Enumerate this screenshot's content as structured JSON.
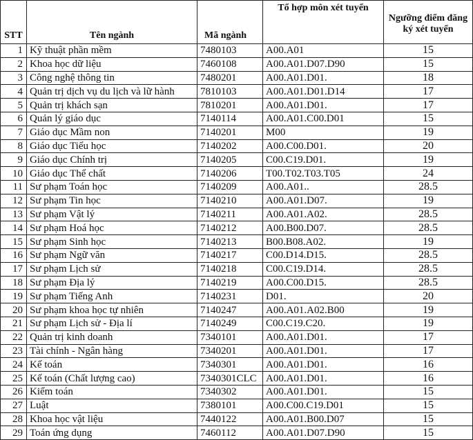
{
  "headers": {
    "stt": "STT",
    "name": "Tên ngành",
    "code": "Mã ngành",
    "combo": "Tổ hợp môn xét tuyển",
    "threshold": "Ngưỡng điểm đăng ký xét tuyển"
  },
  "rows": [
    {
      "stt": "1",
      "name": "Kỹ thuật phần mềm",
      "code": "7480103",
      "combo": "A00.A01",
      "score": "15"
    },
    {
      "stt": "2",
      "name": "Khoa học dữ liệu",
      "code": "7460108",
      "combo": "A00.A01.D07.D90",
      "score": "15"
    },
    {
      "stt": "3",
      "name": "Công nghệ thông tin",
      "code": "7480201",
      "combo": "A00.A01.D01.",
      "score": "18"
    },
    {
      "stt": "4",
      "name": "Quản trị dịch vụ du lịch và lữ hành",
      "code": "7810103",
      "combo": "A00.A01.D01.D14",
      "score": "17"
    },
    {
      "stt": "5",
      "name": "Quản trị khách sạn",
      "code": "7810201",
      "combo": "A00.A01.D01.",
      "score": "17"
    },
    {
      "stt": "6",
      "name": "Quản lý giáo dục",
      "code": "7140114",
      "combo": "A00.A01.C00.D01",
      "score": "15"
    },
    {
      "stt": "7",
      "name": "Giáo dục Mầm non",
      "code": "7140201",
      "combo": "M00",
      "score": "19"
    },
    {
      "stt": "8",
      "name": "Giáo dục Tiểu học",
      "code": "7140202",
      "combo": "A00.C00.D01.",
      "score": "20"
    },
    {
      "stt": "9",
      "name": "Giáo dục Chính trị",
      "code": "7140205",
      "combo": "C00.C19.D01.",
      "score": "19"
    },
    {
      "stt": "10",
      "name": "Giáo dục Thể chất",
      "code": "7140206",
      "combo": "T00.T02.T03.T05",
      "score": "24"
    },
    {
      "stt": "11",
      "name": "Sư phạm Toán học",
      "code": "7140209",
      "combo": "A00.A01..",
      "score": "28.5"
    },
    {
      "stt": "12",
      "name": "Sư phạm Tin học",
      "code": "7140210",
      "combo": "A00.A01.D07.",
      "score": "19"
    },
    {
      "stt": "13",
      "name": "Sư phạm Vật lý",
      "code": "7140211",
      "combo": "A00.A01.A02.",
      "score": "28.5"
    },
    {
      "stt": "14",
      "name": "Sư phạm Hoá học",
      "code": "7140212",
      "combo": "A00.B00.D07.",
      "score": "28.5"
    },
    {
      "stt": "15",
      "name": "Sư phạm Sinh học",
      "code": "7140213",
      "combo": "B00.B08.A02.",
      "score": "19"
    },
    {
      "stt": "16",
      "name": "Sư phạm Ngữ văn",
      "code": "7140217",
      "combo": "C00.D14.D15.",
      "score": "28.5"
    },
    {
      "stt": "17",
      "name": "Sư phạm Lịch sử",
      "code": "7140218",
      "combo": "C00.C19.D14.",
      "score": "28.5"
    },
    {
      "stt": "18",
      "name": "Sư phạm Địa lý",
      "code": "7140219",
      "combo": "A00.C00.D15.",
      "score": "28.5"
    },
    {
      "stt": "19",
      "name": "Sư phạm Tiếng Anh",
      "code": "7140231",
      "combo": "D01.",
      "score": "20"
    },
    {
      "stt": "20",
      "name": "Sư phạm khoa học tự nhiên",
      "code": "7140247",
      "combo": "A00.A01.A02.B00",
      "score": "19"
    },
    {
      "stt": "21",
      "name": "Sư phạm Lịch sử - Địa lí",
      "code": "7140249",
      "combo": "C00.C19.C20.",
      "score": "19"
    },
    {
      "stt": "22",
      "name": "Quản trị kinh doanh",
      "code": "7340101",
      "combo": "A00.A01.D01.",
      "score": "17"
    },
    {
      "stt": "23",
      "name": "Tài chính - Ngân hàng",
      "code": "7340201",
      "combo": "A00.A01.D01.",
      "score": "17"
    },
    {
      "stt": "24",
      "name": "Kế toán",
      "code": "7340301",
      "combo": "A00.A01.D01.",
      "score": "16"
    },
    {
      "stt": "25",
      "name": "Kế toán (Chất lượng cao)",
      "code": "7340301CLC",
      "combo": "A00.A01.D01.",
      "score": "16"
    },
    {
      "stt": "26",
      "name": "Kiểm toán",
      "code": "7340302",
      "combo": "A00.A01.D01.",
      "score": "15"
    },
    {
      "stt": "27",
      "name": "Luật",
      "code": "7380101",
      "combo": "A00.C00.C19.D01",
      "score": "15"
    },
    {
      "stt": "28",
      "name": "Khoa học vật liệu",
      "code": "7440122",
      "combo": "A00.A01.B00.D07",
      "score": "15"
    },
    {
      "stt": "29",
      "name": "Toán ứng dụng",
      "code": "7460112",
      "combo": "A00.A01.D07.D90",
      "score": "15"
    }
  ]
}
